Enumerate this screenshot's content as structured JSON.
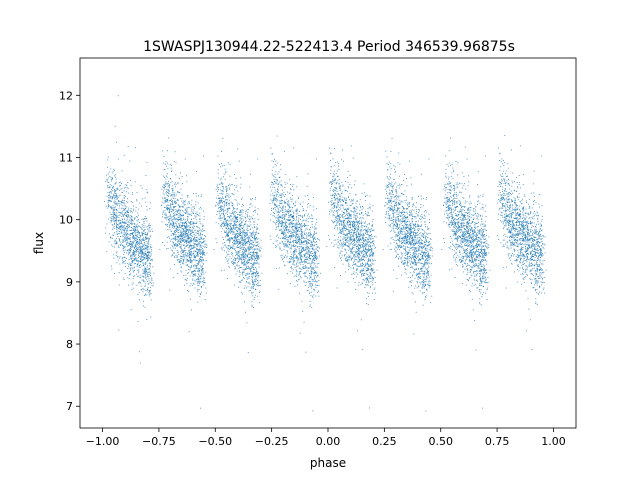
{
  "chart_data": {
    "type": "scatter",
    "title": "1SWASPJ130944.22-522413.4 Period 346539.96875s",
    "xlabel": "phase",
    "ylabel": "flux",
    "xlim": [
      -1.1,
      1.1
    ],
    "ylim": [
      6.65,
      12.6
    ],
    "x_ticks": [
      -1.0,
      -0.75,
      -0.5,
      -0.25,
      0.0,
      0.25,
      0.5,
      0.75,
      1.0
    ],
    "x_tick_labels": [
      "−1.00",
      "−0.75",
      "−0.50",
      "−0.25",
      "0.00",
      "0.25",
      "0.50",
      "0.75",
      "1.00"
    ],
    "y_ticks": [
      7,
      8,
      9,
      10,
      11,
      12
    ],
    "y_tick_labels": [
      "7",
      "8",
      "9",
      "10",
      "11",
      "12"
    ],
    "grid": false,
    "legend": "none",
    "marker_color": "#1f77b4",
    "series": [
      {
        "clusters": [
          {
            "phase_start": -0.98,
            "phase_end": -0.79,
            "flux_start": 10.55,
            "flux_end": 9.35
          },
          {
            "phase_start": -0.73,
            "phase_end": -0.55,
            "flux_start": 10.45,
            "flux_end": 9.4
          },
          {
            "phase_start": -0.49,
            "phase_end": -0.31,
            "flux_start": 10.45,
            "flux_end": 9.35
          },
          {
            "phase_start": -0.25,
            "phase_end": -0.05,
            "flux_start": 10.5,
            "flux_end": 9.35
          },
          {
            "phase_start": 0.01,
            "phase_end": 0.2,
            "flux_start": 10.5,
            "flux_end": 9.4
          },
          {
            "phase_start": 0.26,
            "phase_end": 0.45,
            "flux_start": 10.45,
            "flux_end": 9.35
          },
          {
            "phase_start": 0.52,
            "phase_end": 0.7,
            "flux_start": 10.45,
            "flux_end": 9.4
          },
          {
            "phase_start": 0.76,
            "phase_end": 0.95,
            "flux_start": 10.5,
            "flux_end": 9.4
          }
        ]
      }
    ]
  }
}
